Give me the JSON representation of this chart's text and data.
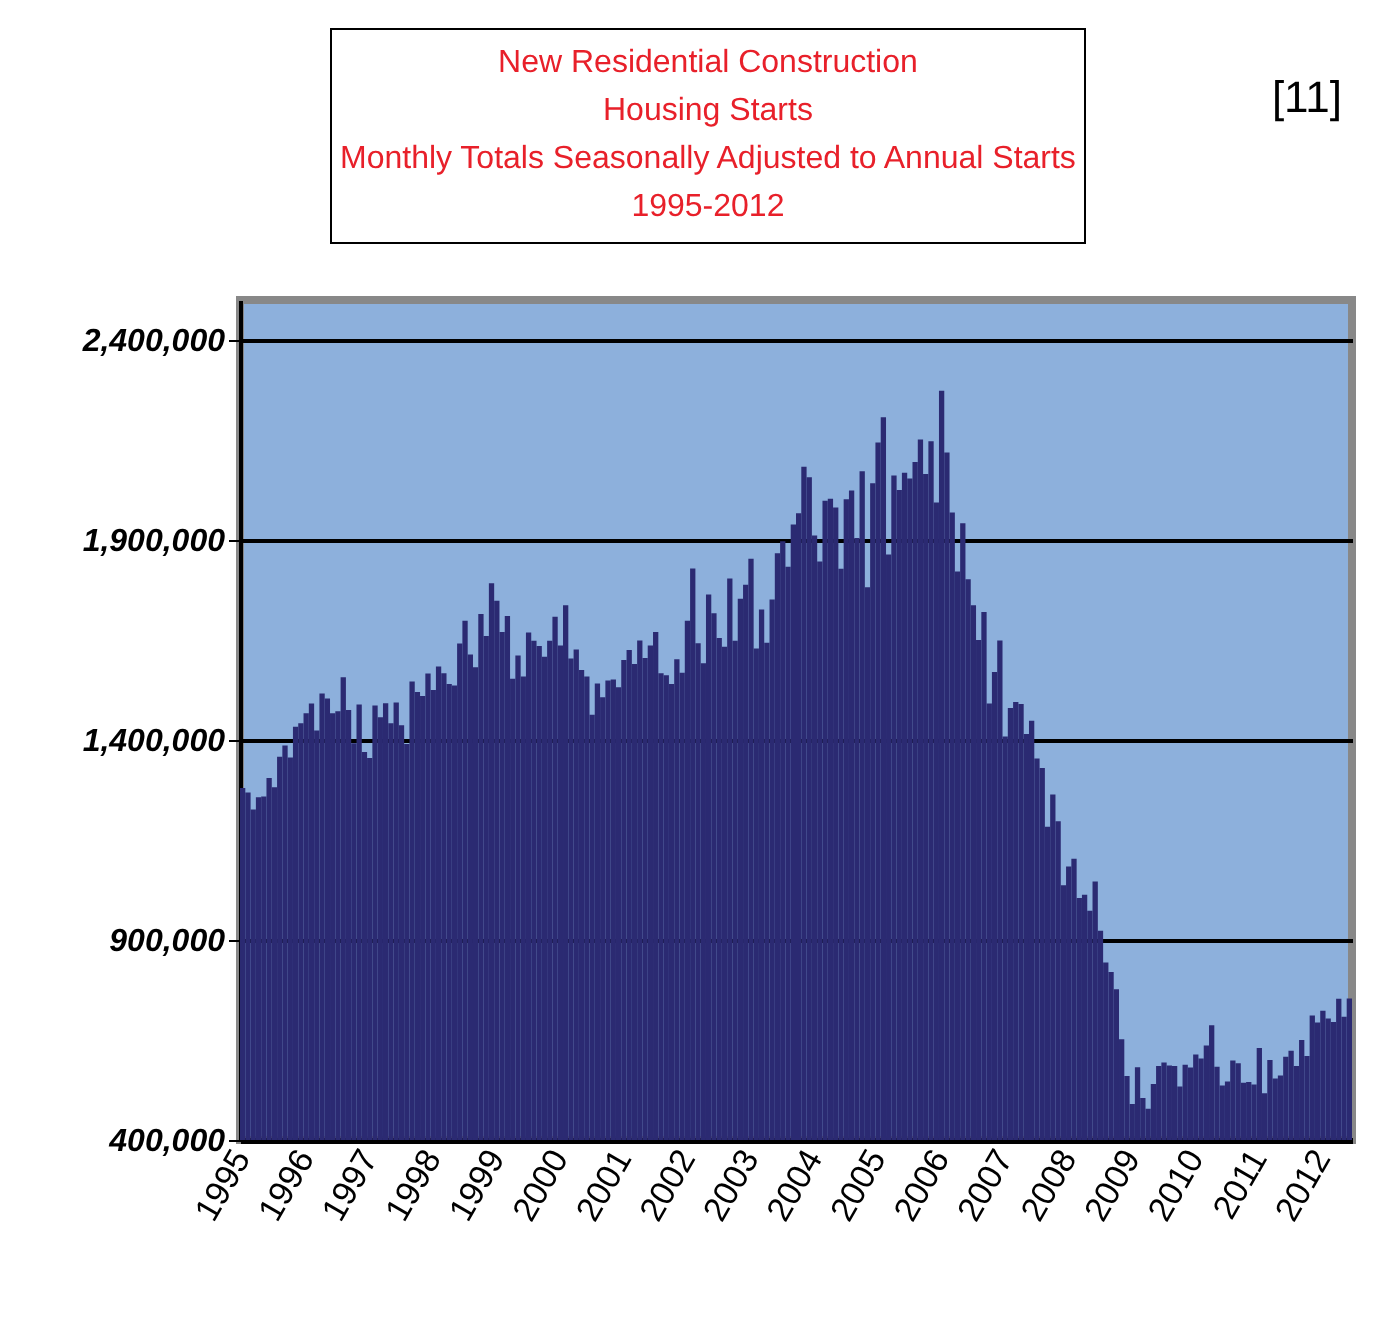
{
  "chart_data": {
    "type": "bar",
    "title": "New Residential Construction\nHousing Starts\nMonthly Totals Seasonally Adjusted to Annual Starts\n1995-2012",
    "annotations": [
      "[11]"
    ],
    "categories": [
      "1995",
      null,
      null,
      null,
      null,
      null,
      null,
      null,
      null,
      null,
      null,
      null,
      "1996",
      null,
      null,
      null,
      null,
      null,
      null,
      null,
      null,
      null,
      null,
      null,
      "1997",
      null,
      null,
      null,
      null,
      null,
      null,
      null,
      null,
      null,
      null,
      null,
      "1998",
      null,
      null,
      null,
      null,
      null,
      null,
      null,
      null,
      null,
      null,
      null,
      "1999",
      null,
      null,
      null,
      null,
      null,
      null,
      null,
      null,
      null,
      null,
      null,
      "2000",
      null,
      null,
      null,
      null,
      null,
      null,
      null,
      null,
      null,
      null,
      null,
      "2001",
      null,
      null,
      null,
      null,
      null,
      null,
      null,
      null,
      null,
      null,
      null,
      "2002",
      null,
      null,
      null,
      null,
      null,
      null,
      null,
      null,
      null,
      null,
      null,
      "2003",
      null,
      null,
      null,
      null,
      null,
      null,
      null,
      null,
      null,
      null,
      null,
      "2004",
      null,
      null,
      null,
      null,
      null,
      null,
      null,
      null,
      null,
      null,
      null,
      "2005",
      null,
      null,
      null,
      null,
      null,
      null,
      null,
      null,
      null,
      null,
      null,
      "2006",
      null,
      null,
      null,
      null,
      null,
      null,
      null,
      null,
      null,
      null,
      null,
      "2007",
      null,
      null,
      null,
      null,
      null,
      null,
      null,
      null,
      null,
      null,
      null,
      "2008",
      null,
      null,
      null,
      null,
      null,
      null,
      null,
      null,
      null,
      null,
      null,
      "2009",
      null,
      null,
      null,
      null,
      null,
      null,
      null,
      null,
      null,
      null,
      null,
      "2010",
      null,
      null,
      null,
      null,
      null,
      null,
      null,
      null,
      null,
      null,
      null,
      "2011",
      null,
      null,
      null,
      null,
      null,
      null,
      null,
      null,
      null,
      null,
      null,
      "2012",
      null,
      null,
      null,
      null,
      null
    ],
    "series": [
      {
        "color": "#2b2a72",
        "values": [
          1280000,
          1269000,
          1226000,
          1257000,
          1259000,
          1305000,
          1282000,
          1358000,
          1386000,
          1356000,
          1433000,
          1442000,
          1467000,
          1491000,
          1424000,
          1516000,
          1504000,
          1467000,
          1472000,
          1557000,
          1475000,
          1392000,
          1489000,
          1370000,
          1355000,
          1486000,
          1457000,
          1492000,
          1442000,
          1494000,
          1437000,
          1390000,
          1546000,
          1520000,
          1510000,
          1566000,
          1525000,
          1584000,
          1567000,
          1540000,
          1536000,
          1641000,
          1698000,
          1614000,
          1582000,
          1715000,
          1660000,
          1792000,
          1748000,
          1670000,
          1710000,
          1553000,
          1611000,
          1559000,
          1669000,
          1648000,
          1635000,
          1608000,
          1648000,
          1708000,
          1636000,
          1737000,
          1604000,
          1626000,
          1575000,
          1559000,
          1463000,
          1541000,
          1507000,
          1549000,
          1551000,
          1532000,
          1600000,
          1625000,
          1590000,
          1649000,
          1605000,
          1636000,
          1670000,
          1567000,
          1562000,
          1540000,
          1602000,
          1568000,
          1698000,
          1829000,
          1642000,
          1592000,
          1764000,
          1717000,
          1655000,
          1633000,
          1804000,
          1648000,
          1753000,
          1788000,
          1853000,
          1629000,
          1726000,
          1643000,
          1751000,
          1867000,
          1897000,
          1833000,
          1939000,
          1967000,
          2083000,
          2057000,
          1911000,
          1846000,
          1998000,
          2003000,
          1981000,
          1828000,
          2002000,
          2024000,
          1905000,
          2072000,
          1782000,
          2042000,
          2144000,
          2207000,
          1864000,
          2061000,
          2025000,
          2068000,
          2054000,
          2095000,
          2151000,
          2065000,
          2147000,
          1994000,
          2273000,
          2119000,
          1969000,
          1821000,
          1942000,
          1802000,
          1737000,
          1650000,
          1720000,
          1491000,
          1570000,
          1649000,
          1409000,
          1480000,
          1495000,
          1490000,
          1415000,
          1448000,
          1354000,
          1330000,
          1183000,
          1264000,
          1197000,
          1037000,
          1084000,
          1103000,
          1005000,
          1013000,
          973000,
          1046000,
          923000,
          844000,
          820000,
          777000,
          652000,
          560000,
          490000,
          582000,
          505000,
          478000,
          540000,
          585000,
          594000,
          586000,
          585000,
          534000,
          588000,
          581000,
          614000,
          604000,
          636000,
          687000,
          583000,
          536000,
          546000,
          599000,
          592000,
          543000,
          545000,
          539000,
          630000,
          517000,
          600000,
          554000,
          561000,
          608000,
          623000,
          585000,
          650000,
          610000,
          711000,
          694000,
          723000,
          704000,
          695000,
          753000,
          708000,
          754000
        ]
      }
    ],
    "ylim": [
      400000,
      2500000
    ],
    "yticks": [
      {
        "value": 400000,
        "label": "400,000"
      },
      {
        "value": 900000,
        "label": "900,000"
      },
      {
        "value": 1400000,
        "label": "1,400,000"
      },
      {
        "value": 1900000,
        "label": "1,900,000"
      },
      {
        "value": 2400000,
        "label": "2,400,000"
      }
    ],
    "grid": "y"
  }
}
